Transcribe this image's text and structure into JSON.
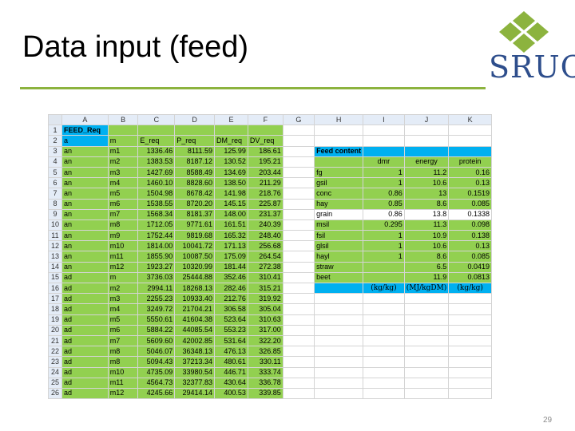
{
  "slide": {
    "title": "Data input (feed)",
    "page_number": "29",
    "logo_text": "SRUC",
    "accent_color": "#8cb33e",
    "brand_color": "#2e4e8c"
  },
  "sheet": {
    "columns": [
      "A",
      "B",
      "C",
      "D",
      "E",
      "F",
      "G",
      "H",
      "I",
      "J",
      "K"
    ],
    "rows": [
      {
        "n": "1",
        "a": "FEED_Req",
        "b": "",
        "c": "",
        "d": "",
        "e": "",
        "f": ""
      },
      {
        "n": "2",
        "a": "a",
        "b": "m",
        "c": "E_req",
        "d": "P_req",
        "e": "DM_req",
        "f": "DV_req"
      },
      {
        "n": "3",
        "a": "an",
        "b": "m1",
        "c": "1336.46",
        "d": "8111.59",
        "e": "125.99",
        "f": "186.61"
      },
      {
        "n": "4",
        "a": "an",
        "b": "m2",
        "c": "1383.53",
        "d": "8187.12",
        "e": "130.52",
        "f": "195.21"
      },
      {
        "n": "5",
        "a": "an",
        "b": "m3",
        "c": "1427.69",
        "d": "8588.49",
        "e": "134.69",
        "f": "203.44"
      },
      {
        "n": "6",
        "a": "an",
        "b": "m4",
        "c": "1460.10",
        "d": "8828.60",
        "e": "138.50",
        "f": "211.29"
      },
      {
        "n": "7",
        "a": "an",
        "b": "m5",
        "c": "1504.98",
        "d": "8678.42",
        "e": "141.98",
        "f": "218.76"
      },
      {
        "n": "8",
        "a": "an",
        "b": "m6",
        "c": "1538.55",
        "d": "8720.20",
        "e": "145.15",
        "f": "225.87"
      },
      {
        "n": "9",
        "a": "an",
        "b": "m7",
        "c": "1568.34",
        "d": "8181.37",
        "e": "148.00",
        "f": "231.37"
      },
      {
        "n": "10",
        "a": "an",
        "b": "m8",
        "c": "1712.05",
        "d": "9771.61",
        "e": "161.51",
        "f": "240.39"
      },
      {
        "n": "11",
        "a": "an",
        "b": "m9",
        "c": "1752.44",
        "d": "9819.68",
        "e": "165.32",
        "f": "248.40"
      },
      {
        "n": "12",
        "a": "an",
        "b": "m10",
        "c": "1814.00",
        "d": "10041.72",
        "e": "171.13",
        "f": "256.68"
      },
      {
        "n": "13",
        "a": "an",
        "b": "m11",
        "c": "1855.90",
        "d": "10087.50",
        "e": "175.09",
        "f": "264.54"
      },
      {
        "n": "14",
        "a": "an",
        "b": "m12",
        "c": "1923.27",
        "d": "10320.99",
        "e": "181.44",
        "f": "272.38"
      },
      {
        "n": "15",
        "a": "ad",
        "b": "m",
        "c": "3736.03",
        "d": "25444.88",
        "e": "352.46",
        "f": "310.41"
      },
      {
        "n": "16",
        "a": "ad",
        "b": "m2",
        "c": "2994.11",
        "d": "18268.13",
        "e": "282.46",
        "f": "315.21"
      },
      {
        "n": "17",
        "a": "ad",
        "b": "m3",
        "c": "2255.23",
        "d": "10933.40",
        "e": "212.76",
        "f": "319.92"
      },
      {
        "n": "18",
        "a": "ad",
        "b": "m4",
        "c": "3249.72",
        "d": "21704.21",
        "e": "306.58",
        "f": "305.04"
      },
      {
        "n": "19",
        "a": "ad",
        "b": "m5",
        "c": "5550.61",
        "d": "41604.38",
        "e": "523.64",
        "f": "310.63"
      },
      {
        "n": "20",
        "a": "ad",
        "b": "m6",
        "c": "5884.22",
        "d": "44085.54",
        "e": "553.23",
        "f": "317.00"
      },
      {
        "n": "21",
        "a": "ad",
        "b": "m7",
        "c": "5609.60",
        "d": "42002.85",
        "e": "531.64",
        "f": "322.20"
      },
      {
        "n": "22",
        "a": "ad",
        "b": "m8",
        "c": "5046.07",
        "d": "36348.13",
        "e": "476.13",
        "f": "326.85"
      },
      {
        "n": "23",
        "a": "ad",
        "b": "m8",
        "c": "5094.43",
        "d": "37213.34",
        "e": "480.61",
        "f": "330.11"
      },
      {
        "n": "24",
        "a": "ad",
        "b": "m10",
        "c": "4735.09",
        "d": "33980.54",
        "e": "446.71",
        "f": "333.74"
      },
      {
        "n": "25",
        "a": "ad",
        "b": "m11",
        "c": "4564.73",
        "d": "32377.83",
        "e": "430.64",
        "f": "336.78"
      },
      {
        "n": "26",
        "a": "ad",
        "b": "m12",
        "c": "4245.66",
        "d": "29414.14",
        "e": "400.53",
        "f": "339.85"
      }
    ],
    "feed_content": {
      "title": "Feed content",
      "headers": [
        "dmr",
        "energy",
        "protein"
      ],
      "rows": [
        {
          "name": "fg",
          "dmr": "1",
          "energy": "11.2",
          "protein": "0.16"
        },
        {
          "name": "gsil",
          "dmr": "1",
          "energy": "10.6",
          "protein": "0.13"
        },
        {
          "name": "conc",
          "dmr": "0.86",
          "energy": "13",
          "protein": "0.1519"
        },
        {
          "name": "hay",
          "dmr": "0.85",
          "energy": "8.6",
          "protein": "0.085"
        },
        {
          "name": "grain",
          "dmr": "0.86",
          "energy": "13.8",
          "protein": "0.1338"
        },
        {
          "name": "msil",
          "dmr": "0.295",
          "energy": "11.3",
          "protein": "0.098"
        },
        {
          "name": "fsil",
          "dmr": "1",
          "energy": "10.9",
          "protein": "0.138"
        },
        {
          "name": "glsil",
          "dmr": "1",
          "energy": "10.6",
          "protein": "0.13"
        },
        {
          "name": "hayl",
          "dmr": "1",
          "energy": "8.6",
          "protein": "0.085"
        },
        {
          "name": "straw",
          "dmr": "",
          "energy": "6.5",
          "protein": "0.0419"
        },
        {
          "name": "beet",
          "dmr": "",
          "energy": "11.9",
          "protein": "0.0813"
        }
      ],
      "units": [
        "(kg/kg)",
        "(MJ/kgDM)",
        "(kg/kg)"
      ]
    }
  }
}
